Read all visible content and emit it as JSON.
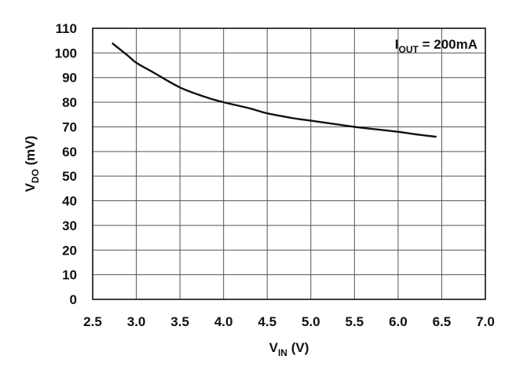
{
  "chart_data": {
    "type": "line",
    "xlabel": {
      "main": "V",
      "sub": "IN",
      "rest": " (V)"
    },
    "ylabel": {
      "main": "V",
      "sub": "DO",
      "rest": " (mV)"
    },
    "annotation": {
      "main": "I",
      "sub": "OUT",
      "rest": " = 200mA"
    },
    "xlim": [
      2.5,
      7.0
    ],
    "ylim": [
      0,
      110
    ],
    "x_ticks": [
      2.5,
      3.0,
      3.5,
      4.0,
      4.5,
      5.0,
      5.5,
      6.0,
      6.5,
      7.0
    ],
    "x_tick_labels": [
      "2.5",
      "3.0",
      "3.5",
      "4.0",
      "4.5",
      "5.0",
      "5.5",
      "6.0",
      "6.5",
      "7.0"
    ],
    "y_ticks": [
      0,
      10,
      20,
      30,
      40,
      50,
      60,
      70,
      80,
      90,
      100,
      110
    ],
    "y_tick_labels": [
      "0",
      "10",
      "20",
      "30",
      "40",
      "50",
      "60",
      "70",
      "80",
      "90",
      "100",
      "110"
    ],
    "grid": true,
    "series": [
      {
        "x": [
          2.73,
          2.9,
          3.0,
          3.2,
          3.5,
          3.8,
          4.0,
          4.3,
          4.5,
          4.8,
          5.0,
          5.3,
          5.5,
          5.8,
          6.0,
          6.2,
          6.43
        ],
        "y": [
          103.8,
          99,
          96,
          92,
          86,
          82,
          80,
          77.5,
          75.5,
          73.5,
          72.5,
          71,
          70,
          68.8,
          68,
          67,
          66
        ]
      }
    ]
  }
}
